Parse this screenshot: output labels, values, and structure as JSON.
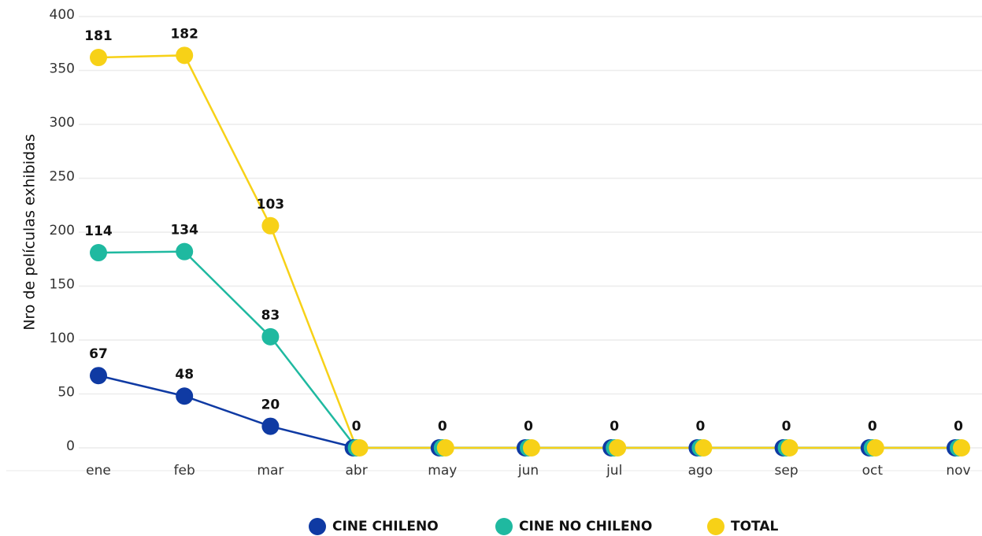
{
  "chart_data": {
    "type": "line",
    "stacked": true,
    "y_label": "Nro de películas exhibidas",
    "categories": [
      "ene",
      "feb",
      "mar",
      "abr",
      "may",
      "jun",
      "jul",
      "ago",
      "sep",
      "oct",
      "nov"
    ],
    "series": [
      {
        "name": "CINE CHILENO",
        "color": "#0f3aa3",
        "values": [
          67,
          48,
          20,
          0,
          0,
          0,
          0,
          0,
          0,
          0,
          0
        ]
      },
      {
        "name": "CINE NO CHILENO",
        "color": "#1fb9a0",
        "values": [
          114,
          134,
          83,
          0,
          0,
          0,
          0,
          0,
          0,
          0,
          0
        ]
      },
      {
        "name": "TOTAL",
        "color": "#f7d117",
        "values": [
          181,
          182,
          103,
          0,
          0,
          0,
          0,
          0,
          0,
          0,
          0
        ]
      }
    ],
    "ylim": [
      0,
      400
    ],
    "yticks": [
      0,
      50,
      100,
      150,
      200,
      250,
      300,
      350,
      400
    ],
    "grid": true
  }
}
